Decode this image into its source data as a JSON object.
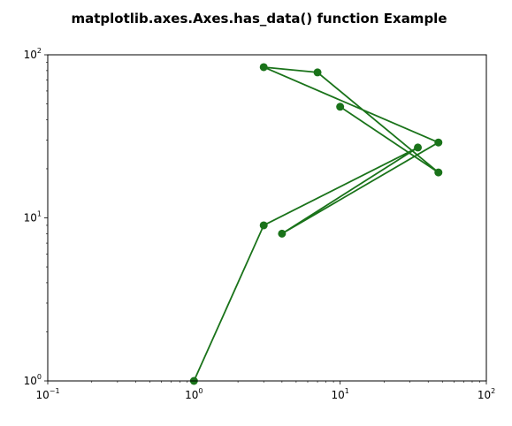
{
  "chart_data": {
    "type": "line",
    "title": "matplotlib.axes.Axes.has_data() function Example",
    "xlabel": "",
    "ylabel": "",
    "xscale": "log",
    "yscale": "log",
    "xlim": [
      0.1,
      100
    ],
    "ylim": [
      1,
      100
    ],
    "grid": false,
    "x_ticks": [
      {
        "value": 0.1,
        "base": "10",
        "exp": "−1"
      },
      {
        "value": 1,
        "base": "10",
        "exp": "0"
      },
      {
        "value": 10,
        "base": "10",
        "exp": "1"
      },
      {
        "value": 100,
        "base": "10",
        "exp": "2"
      }
    ],
    "y_ticks": [
      {
        "value": 1,
        "base": "10",
        "exp": "0"
      },
      {
        "value": 10,
        "base": "10",
        "exp": "1"
      },
      {
        "value": 100,
        "base": "10",
        "exp": "2"
      }
    ],
    "series": [
      {
        "color": "#1a731a",
        "marker": "circle",
        "points": [
          [
            1,
            1
          ],
          [
            3,
            9
          ],
          [
            34,
            27
          ],
          [
            4,
            8
          ],
          [
            47,
            29
          ],
          [
            3,
            84
          ],
          [
            7,
            78
          ],
          [
            47,
            19
          ],
          [
            10,
            48
          ]
        ]
      }
    ]
  }
}
